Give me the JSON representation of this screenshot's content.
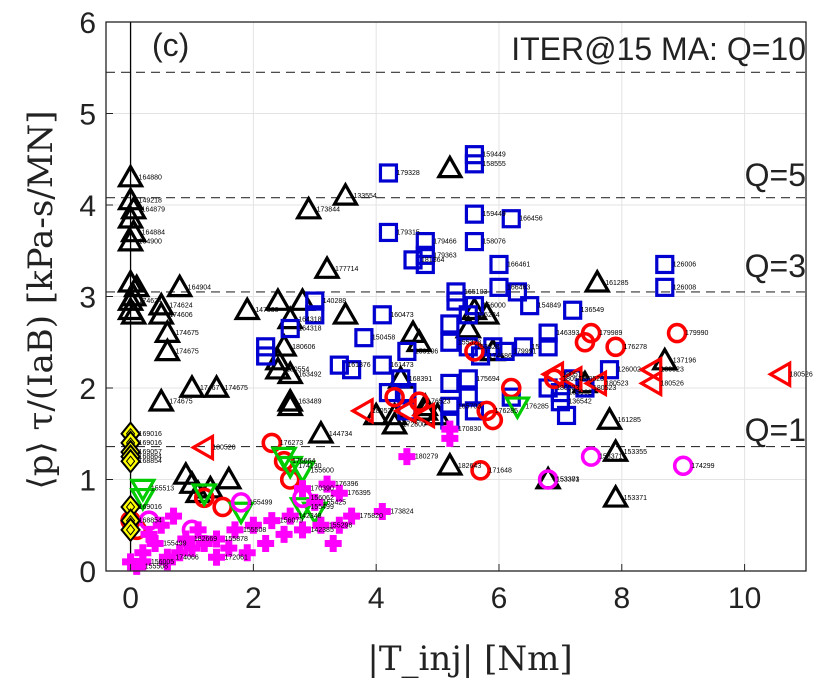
{
  "chart_data": {
    "type": "scatter",
    "panel_label": "(c)",
    "xlabel": "|T_inj| [Nm]",
    "ylabel": "⟨p⟩ τ/(IaB) [kPa-s/MN]",
    "xlim": [
      -0.4,
      11
    ],
    "ylim": [
      0,
      6
    ],
    "xticks": [
      "0",
      "2",
      "4",
      "6",
      "8",
      "10"
    ],
    "yticks": [
      "0",
      "1",
      "2",
      "3",
      "4",
      "5",
      "6"
    ],
    "grid": true,
    "reference_lines": [
      {
        "label": "ITER@15 MA: Q=10",
        "y": 5.45
      },
      {
        "label": "Q=5",
        "y": 4.08
      },
      {
        "label": "Q=3",
        "y": 3.05
      },
      {
        "label": "Q=1",
        "y": 1.36
      }
    ],
    "series": [
      {
        "marker": "triangle-up",
        "color": "#000000",
        "points": [
          [
            0.0,
            4.3,
            "164880"
          ],
          [
            0.0,
            4.05,
            "149218"
          ],
          [
            0.05,
            3.95,
            "164879"
          ],
          [
            0.0,
            3.85,
            ""
          ],
          [
            0.05,
            3.7,
            "164884"
          ],
          [
            0.0,
            3.6,
            "164900"
          ],
          [
            0.0,
            3.15,
            ""
          ],
          [
            0.1,
            3.1,
            ""
          ],
          [
            0.05,
            3.0,
            ""
          ],
          [
            0.0,
            2.95,
            "174624"
          ],
          [
            0.0,
            2.85,
            ""
          ],
          [
            0.05,
            2.8,
            ""
          ],
          [
            0.5,
            2.9,
            "174624"
          ],
          [
            0.5,
            2.8,
            "174606"
          ],
          [
            0.6,
            2.6,
            "174675"
          ],
          [
            0.6,
            2.4,
            "174675"
          ],
          [
            0.8,
            3.1,
            "164904"
          ],
          [
            0.5,
            1.85,
            "174675"
          ],
          [
            1.0,
            2.0,
            "17467"
          ],
          [
            1.4,
            2.0,
            "174675"
          ],
          [
            1.9,
            2.85,
            "147330"
          ],
          [
            2.4,
            2.95,
            ""
          ],
          [
            2.6,
            2.75,
            "164318"
          ],
          [
            2.5,
            2.45,
            "180606"
          ],
          [
            2.4,
            2.3,
            ""
          ],
          [
            2.4,
            2.2,
            "180554"
          ],
          [
            2.6,
            2.15,
            "163492"
          ],
          [
            2.6,
            1.85,
            "163489"
          ],
          [
            2.6,
            1.8,
            ""
          ],
          [
            2.8,
            2.95,
            ""
          ],
          [
            2.9,
            3.95,
            "173844"
          ],
          [
            3.2,
            3.3,
            "177714"
          ],
          [
            3.5,
            4.1,
            "133554"
          ],
          [
            3.5,
            2.8,
            ""
          ],
          [
            3.1,
            1.5,
            "144734"
          ],
          [
            4.3,
            1.7,
            ""
          ],
          [
            4.3,
            1.6,
            "172800"
          ],
          [
            4.4,
            2.1,
            ""
          ],
          [
            4.6,
            2.6,
            ""
          ],
          [
            4.7,
            2.5,
            ""
          ],
          [
            4.8,
            1.8,
            ""
          ],
          [
            4.8,
            1.75,
            ""
          ],
          [
            5.0,
            1.7,
            ""
          ],
          [
            5.2,
            4.4,
            ""
          ],
          [
            5.2,
            1.15,
            "182643"
          ],
          [
            5.5,
            2.65,
            ""
          ],
          [
            5.6,
            2.85,
            ""
          ],
          [
            5.8,
            2.8,
            ""
          ],
          [
            5.9,
            2.4,
            ""
          ],
          [
            6.8,
            1.0,
            "153371"
          ],
          [
            7.4,
            2.05,
            ""
          ],
          [
            7.6,
            3.15,
            "161285"
          ],
          [
            7.8,
            1.65,
            "161285"
          ],
          [
            7.9,
            1.3,
            "153355"
          ],
          [
            7.9,
            0.8,
            "153371"
          ],
          [
            8.7,
            2.3,
            "137196"
          ],
          [
            0.9,
            1.05,
            ""
          ],
          [
            1.0,
            0.95,
            ""
          ],
          [
            1.1,
            0.85,
            ""
          ],
          [
            1.3,
            0.9,
            ""
          ],
          [
            1.6,
            1.0,
            ""
          ],
          [
            4.0,
            1.7,
            ""
          ]
        ]
      },
      {
        "marker": "square",
        "color": "#0000d0",
        "points": [
          [
            4.2,
            4.35,
            "179328"
          ],
          [
            4.2,
            3.7,
            "179315"
          ],
          [
            4.8,
            3.6,
            "179466"
          ],
          [
            4.8,
            3.45,
            "179363"
          ],
          [
            4.8,
            3.35,
            ""
          ],
          [
            4.6,
            3.4,
            "181364"
          ],
          [
            5.6,
            4.55,
            "159449"
          ],
          [
            5.6,
            4.45,
            "158555"
          ],
          [
            5.6,
            3.9,
            "159449"
          ],
          [
            5.6,
            3.6,
            "158076"
          ],
          [
            6.2,
            3.85,
            "166456"
          ],
          [
            6.0,
            3.35,
            "166461"
          ],
          [
            6.3,
            3.05,
            ""
          ],
          [
            6.0,
            3.1,
            "166463"
          ],
          [
            6.5,
            2.9,
            "154849"
          ],
          [
            5.3,
            3.05,
            "165103"
          ],
          [
            5.3,
            2.95,
            ""
          ],
          [
            5.6,
            2.9,
            "156000"
          ],
          [
            5.5,
            2.8,
            "155284"
          ],
          [
            5.2,
            2.7,
            ""
          ],
          [
            5.2,
            2.5,
            "155328"
          ],
          [
            5.5,
            2.45,
            "153328"
          ],
          [
            5.7,
            2.35,
            "174686"
          ],
          [
            5.9,
            2.45,
            ""
          ],
          [
            6.1,
            2.4,
            "179991"
          ],
          [
            6.4,
            2.45,
            "15"
          ],
          [
            6.8,
            2.6,
            "146393"
          ],
          [
            6.8,
            2.45,
            ""
          ],
          [
            7.2,
            2.85,
            "136549"
          ],
          [
            7.2,
            2.1,
            ""
          ],
          [
            7.0,
            1.95,
            "135962"
          ],
          [
            7.0,
            1.85,
            "136542"
          ],
          [
            7.1,
            1.7,
            ""
          ],
          [
            3.0,
            2.95,
            "140288"
          ],
          [
            3.0,
            2.8,
            ""
          ],
          [
            2.2,
            2.45,
            ""
          ],
          [
            2.2,
            2.35,
            ""
          ],
          [
            2.6,
            2.65,
            "164318"
          ],
          [
            3.4,
            2.25,
            "161376"
          ],
          [
            3.6,
            2.2,
            ""
          ],
          [
            3.8,
            2.55,
            "150458"
          ],
          [
            4.1,
            2.8,
            "160473"
          ],
          [
            4.1,
            2.25,
            "161473"
          ],
          [
            4.5,
            2.4,
            "159106"
          ],
          [
            4.4,
            2.1,
            "168391"
          ],
          [
            4.5,
            1.95,
            ""
          ],
          [
            4.2,
            1.95,
            ""
          ],
          [
            4.5,
            1.75,
            ""
          ],
          [
            5.2,
            1.8,
            "165703"
          ],
          [
            5.2,
            1.65,
            ""
          ],
          [
            5.5,
            2.1,
            "175694"
          ],
          [
            5.5,
            1.9,
            ""
          ],
          [
            5.6,
            1.75,
            ""
          ],
          [
            6.2,
            1.9,
            ""
          ],
          [
            6.8,
            2.0,
            "180523"
          ],
          [
            7.4,
            2.0,
            "180523"
          ],
          [
            7.8,
            2.2,
            "126002"
          ],
          [
            8.7,
            3.35,
            "126006"
          ],
          [
            8.7,
            3.1,
            "126008"
          ],
          [
            5.2,
            2.05,
            ""
          ]
        ]
      },
      {
        "marker": "circle",
        "color": "#ff0000",
        "points": [
          [
            7.5,
            2.6,
            "179989"
          ],
          [
            7.4,
            2.5,
            ""
          ],
          [
            7.9,
            2.45,
            "176278"
          ],
          [
            8.9,
            2.6,
            "179990"
          ],
          [
            6.9,
            2.1,
            "180548"
          ],
          [
            5.8,
            1.75,
            "176285"
          ],
          [
            5.9,
            1.65,
            ""
          ],
          [
            5.7,
            1.1,
            "171648"
          ],
          [
            6.2,
            2.0,
            ""
          ],
          [
            5.6,
            2.4,
            ""
          ],
          [
            4.3,
            1.9,
            ""
          ],
          [
            4.7,
            1.85,
            "176523"
          ],
          [
            2.3,
            1.4,
            "176273"
          ],
          [
            2.5,
            1.2,
            "176664"
          ],
          [
            2.6,
            1.0,
            ""
          ],
          [
            0.0,
            0.55,
            ""
          ],
          [
            0.1,
            0.45,
            ""
          ],
          [
            1.2,
            0.8,
            ""
          ],
          [
            1.5,
            0.7,
            ""
          ]
        ]
      },
      {
        "marker": "triangle-left",
        "color": "#ff0000",
        "points": [
          [
            10.6,
            2.15,
            "180526"
          ],
          [
            8.5,
            2.2,
            "180523"
          ],
          [
            8.5,
            2.05,
            "180526"
          ],
          [
            7.6,
            2.05,
            "180523"
          ],
          [
            7.2,
            2.1,
            "180523"
          ],
          [
            6.9,
            2.15,
            "180513"
          ],
          [
            3.8,
            1.75,
            "18052"
          ],
          [
            1.2,
            1.35,
            "180520"
          ],
          [
            4.5,
            1.75,
            ""
          ],
          [
            4.8,
            1.7,
            ""
          ]
        ]
      },
      {
        "marker": "triangle-down",
        "color": "#00cc00",
        "points": [
          [
            0.2,
            0.9,
            "155513"
          ],
          [
            0.2,
            0.8,
            ""
          ],
          [
            2.5,
            1.25,
            ""
          ],
          [
            2.6,
            1.15,
            "174130"
          ],
          [
            2.8,
            1.1,
            "155600"
          ],
          [
            6.3,
            1.8,
            "176285"
          ],
          [
            2.8,
            0.7,
            "155499"
          ],
          [
            3.0,
            0.65,
            ""
          ],
          [
            1.8,
            0.65,
            ""
          ],
          [
            1.2,
            0.85,
            ""
          ]
        ]
      },
      {
        "marker": "circle",
        "color": "#ff00ff",
        "points": [
          [
            6.8,
            1.0,
            "153303"
          ],
          [
            7.5,
            1.25,
            "153371"
          ],
          [
            9.0,
            1.15,
            "174299"
          ],
          [
            1.8,
            0.75,
            "155499"
          ],
          [
            2.8,
            0.8,
            "156062"
          ],
          [
            1.0,
            0.45,
            ""
          ],
          [
            0.3,
            0.55,
            ""
          ]
        ]
      },
      {
        "marker": "plus",
        "color": "#ff00ff",
        "points": [
          [
            5.2,
            1.55,
            "170830"
          ],
          [
            5.2,
            1.45,
            ""
          ],
          [
            4.5,
            1.25,
            "180279"
          ],
          [
            3.2,
            0.95,
            "176396"
          ],
          [
            3.4,
            0.85,
            "176395"
          ],
          [
            3.6,
            0.6,
            "175820"
          ],
          [
            4.1,
            0.65,
            "173824"
          ],
          [
            2.8,
            0.9,
            "170390"
          ],
          [
            3.0,
            0.75,
            "155425"
          ],
          [
            2.6,
            0.6,
            "142348"
          ],
          [
            2.8,
            0.45,
            "142385"
          ],
          [
            3.1,
            0.5,
            "155298"
          ],
          [
            3.4,
            0.5,
            ""
          ],
          [
            2.3,
            0.55,
            "156079"
          ],
          [
            2.0,
            0.5,
            ""
          ],
          [
            1.7,
            0.45,
            "155508"
          ],
          [
            1.4,
            0.35,
            "155878"
          ],
          [
            1.2,
            0.3,
            ""
          ],
          [
            1.0,
            0.25,
            ""
          ],
          [
            0.6,
            0.15,
            "174066"
          ],
          [
            0.8,
            0.2,
            ""
          ],
          [
            0.4,
            0.3,
            "155499"
          ],
          [
            0.2,
            0.1,
            "156005"
          ],
          [
            0.1,
            0.05,
            "155508"
          ],
          [
            0.0,
            0.1,
            ""
          ],
          [
            0.2,
            0.2,
            ""
          ],
          [
            0.3,
            0.4,
            ""
          ],
          [
            0.5,
            0.5,
            ""
          ],
          [
            0.7,
            0.6,
            ""
          ],
          [
            0.9,
            0.35,
            "182669"
          ],
          [
            1.1,
            0.45,
            ""
          ],
          [
            1.4,
            0.15,
            "172061"
          ],
          [
            1.6,
            0.25,
            ""
          ],
          [
            1.9,
            0.2,
            ""
          ],
          [
            2.2,
            0.3,
            ""
          ],
          [
            2.5,
            0.4,
            ""
          ],
          [
            3.3,
            0.3,
            ""
          ],
          [
            0.6,
            0.1,
            ""
          ]
        ]
      },
      {
        "marker": "diamond",
        "color": "#ffff00",
        "points": [
          [
            0.0,
            1.5,
            "169016"
          ],
          [
            0.0,
            1.4,
            "169016"
          ],
          [
            0.0,
            1.3,
            "169057"
          ],
          [
            0.0,
            1.25,
            "168864"
          ],
          [
            0.0,
            1.2,
            "168854"
          ],
          [
            0.0,
            0.7,
            "169016"
          ],
          [
            0.0,
            0.55,
            "168854"
          ],
          [
            0.0,
            0.45,
            ""
          ]
        ]
      }
    ]
  }
}
